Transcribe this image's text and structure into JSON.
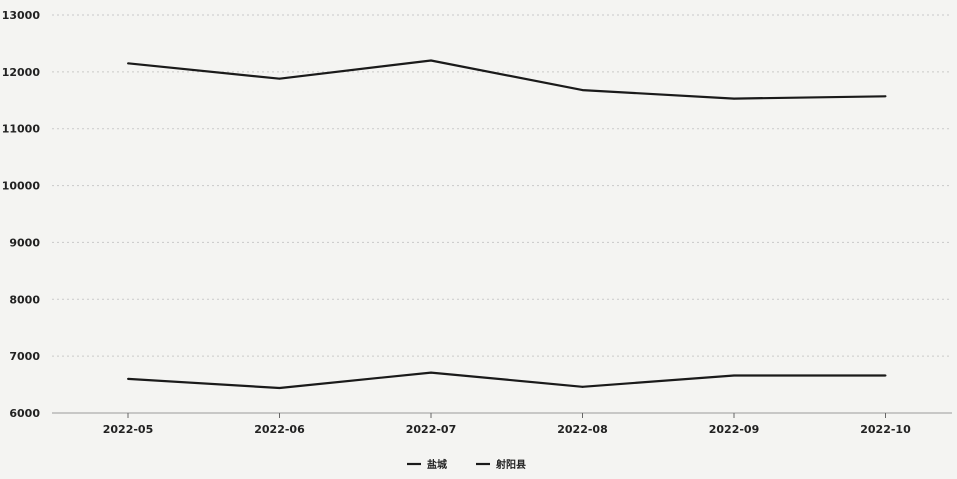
{
  "chart_data": {
    "type": "line",
    "x": [
      "2022-05",
      "2022-06",
      "2022-07",
      "2022-08",
      "2022-09",
      "2022-10"
    ],
    "y_ticks": [
      6000,
      7000,
      8000,
      9000,
      10000,
      11000,
      12000,
      13000
    ],
    "ylim": [
      6000,
      13000
    ],
    "grid": true,
    "legend_position": "bottom",
    "series": [
      {
        "name": "盐城",
        "values": [
          12150,
          11880,
          12200,
          11680,
          11530,
          11570
        ],
        "color": "#1a1a1a"
      },
      {
        "name": "射阳县",
        "values": [
          6600,
          6440,
          6710,
          6460,
          6660,
          6660
        ],
        "color": "#1a1a1a"
      }
    ]
  }
}
